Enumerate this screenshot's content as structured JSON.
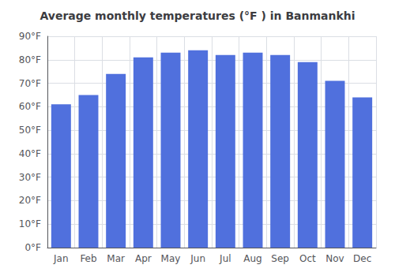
{
  "chart_data": {
    "type": "bar",
    "title": "Average monthly temperatures (°F ) in Banmankhi",
    "categories": [
      "Jan",
      "Feb",
      "Mar",
      "Apr",
      "May",
      "Jun",
      "Jul",
      "Aug",
      "Sep",
      "Oct",
      "Nov",
      "Dec"
    ],
    "values": [
      61,
      65,
      74,
      81,
      83,
      84,
      82,
      83,
      82,
      79,
      71,
      64
    ],
    "ylim": [
      0,
      90
    ],
    "yticks": [
      {
        "value": 0,
        "label": "0°F"
      },
      {
        "value": 10,
        "label": "10°F"
      },
      {
        "value": 20,
        "label": "20°F"
      },
      {
        "value": 30,
        "label": "30°F"
      },
      {
        "value": 40,
        "label": "40°F"
      },
      {
        "value": 50,
        "label": "50°F"
      },
      {
        "value": 60,
        "label": "60°F"
      },
      {
        "value": 70,
        "label": "70°F"
      },
      {
        "value": 80,
        "label": "80°F"
      },
      {
        "value": 90,
        "label": "90°F"
      }
    ],
    "grid": true
  }
}
